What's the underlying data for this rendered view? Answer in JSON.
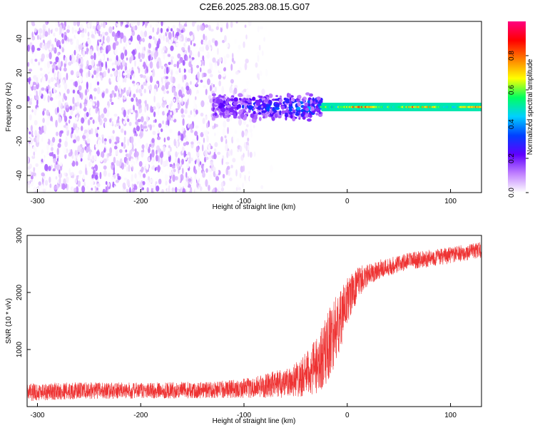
{
  "title": "C2E6.2025.283.08.15.G07",
  "chart_data": [
    {
      "type": "heatmap",
      "name": "spectrogram",
      "xlabel": "Height of straight line (km)",
      "ylabel": "Frequency (Hz)",
      "xlim": [
        -310,
        130
      ],
      "ylim": [
        -50,
        50
      ],
      "xticks": [
        -300,
        -200,
        -100,
        0,
        100
      ],
      "xtick_labels": [
        "-300",
        "-200",
        "-100",
        "0",
        "100"
      ],
      "yticks": [
        -40,
        -20,
        0,
        20,
        40
      ],
      "ytick_labels": [
        "-40",
        "-20",
        "0",
        "20",
        "40"
      ],
      "colorbar": {
        "label": "Normalized spectral amplitude",
        "range": [
          0,
          1
        ],
        "ticks": [
          0.0,
          0.2,
          0.4,
          0.6,
          0.8
        ],
        "tick_labels": [
          "0.0",
          "0.2",
          "0.4",
          "0.6",
          "0.8"
        ],
        "colors": [
          "#ffffff",
          "#c080ff",
          "#6000ff",
          "#0040ff",
          "#00d0ff",
          "#00ff60",
          "#ffff00",
          "#ff8000",
          "#ff0000",
          "#ff0080"
        ]
      },
      "regions": [
        {
          "x_range": [
            -310,
            -130
          ],
          "freq_range": [
            -50,
            50
          ],
          "description": "broadband noise",
          "amplitude": [
            0.0,
            0.15
          ]
        },
        {
          "x_range": [
            -130,
            -25
          ],
          "freq_range": [
            -8,
            8
          ],
          "description": "tone emerging",
          "amplitude": [
            0.1,
            0.5
          ]
        },
        {
          "x_range": [
            -25,
            130
          ],
          "freq_range": [
            -2,
            2
          ],
          "description": "steady tone near 0 Hz",
          "amplitude": [
            0.4,
            1.0
          ]
        }
      ]
    },
    {
      "type": "line",
      "name": "snr",
      "xlabel": "Height of straight line (km)",
      "ylabel": "SNR (10 * v/v)",
      "xlim": [
        -310,
        130
      ],
      "ylim": [
        0,
        3000
      ],
      "xticks": [
        -300,
        -200,
        -100,
        0,
        100
      ],
      "xtick_labels": [
        "-300",
        "-200",
        "-100",
        "0",
        "100"
      ],
      "yticks": [
        1000,
        2000,
        3000
      ],
      "ytick_labels": [
        "1000",
        "2000",
        "3000"
      ],
      "color": "#ee3333",
      "series": [
        {
          "name": "SNR",
          "x": [
            -310,
            -280,
            -250,
            -200,
            -150,
            -120,
            -100,
            -80,
            -60,
            -50,
            -40,
            -30,
            -25,
            -20,
            -15,
            -10,
            -5,
            0,
            5,
            10,
            15,
            20,
            30,
            40,
            60,
            80,
            100,
            130
          ],
          "y": [
            250,
            270,
            280,
            280,
            290,
            300,
            320,
            360,
            420,
            480,
            560,
            700,
            850,
            1000,
            1200,
            1400,
            1600,
            1850,
            2000,
            2150,
            2250,
            2300,
            2400,
            2450,
            2550,
            2600,
            2650,
            2750
          ],
          "noise": [
            220,
            220,
            210,
            200,
            210,
            220,
            240,
            300,
            380,
            450,
            550,
            700,
            800,
            900,
            900,
            800,
            700,
            600,
            500,
            400,
            330,
            280,
            250,
            230,
            220,
            210,
            210,
            200
          ]
        }
      ]
    }
  ]
}
